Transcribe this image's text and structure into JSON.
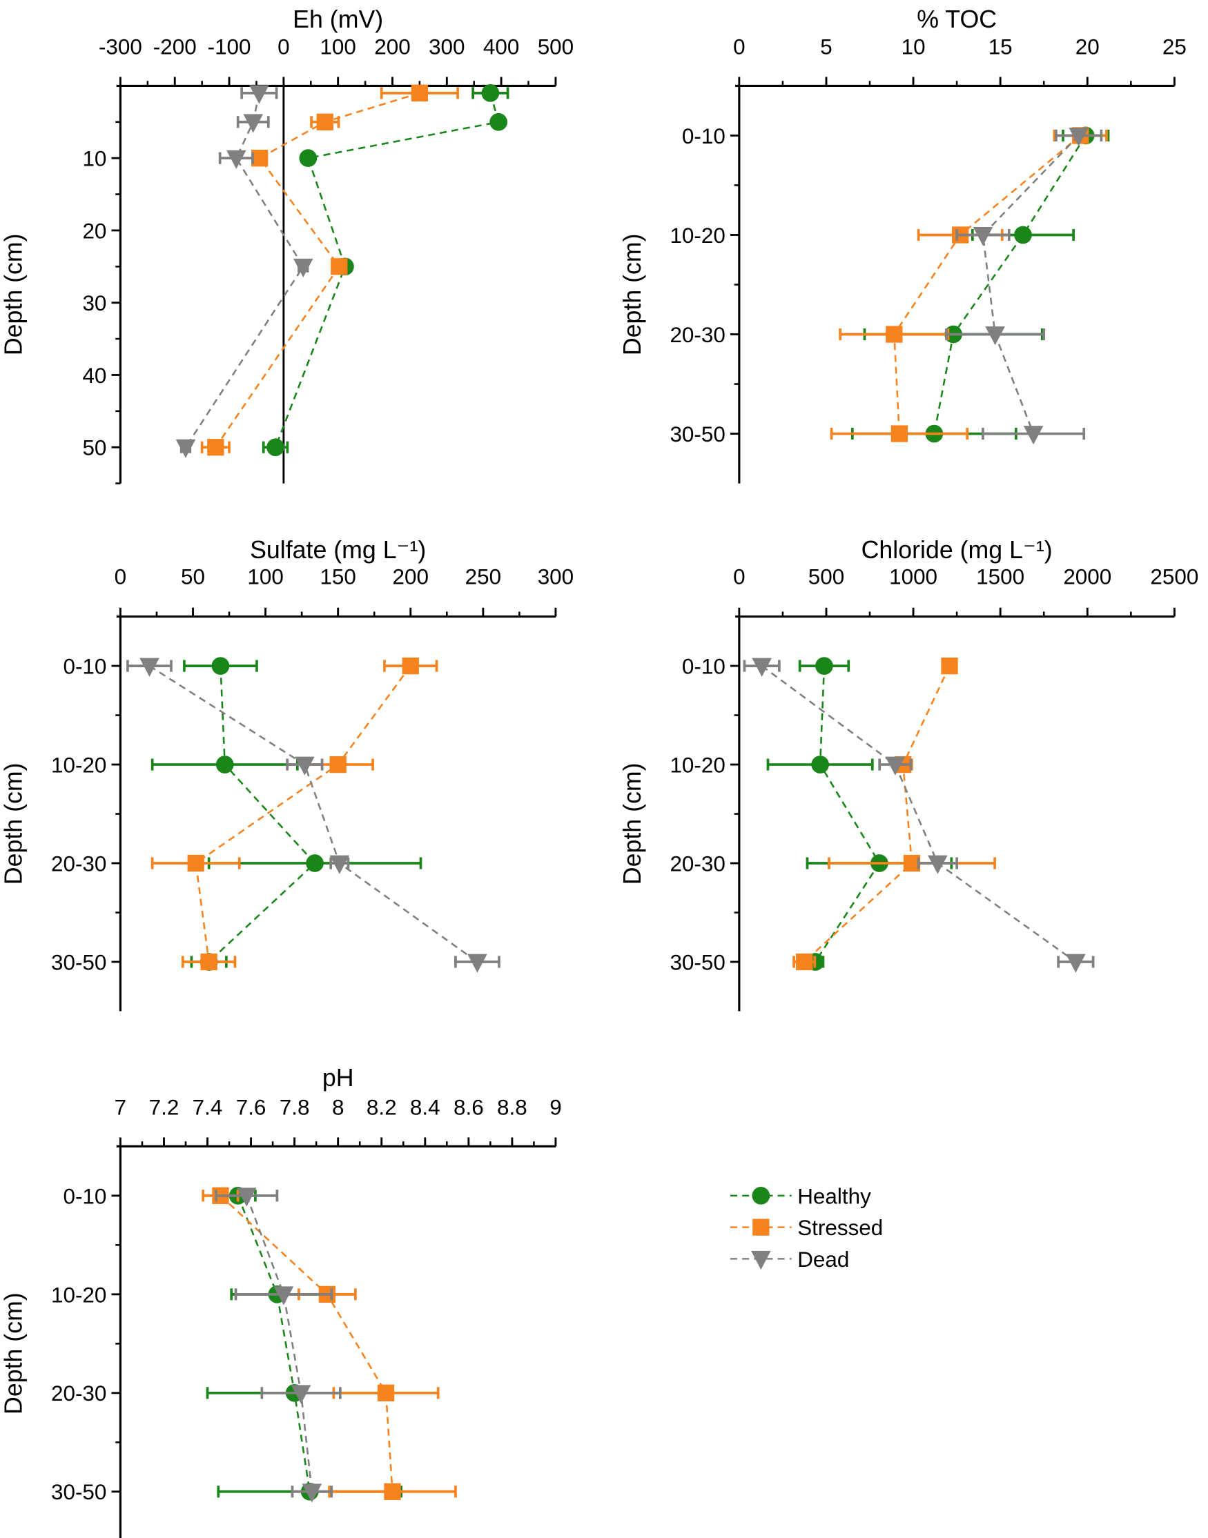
{
  "colors": {
    "Healthy": "#1a861a",
    "Stressed": "#f7831e",
    "Dead": "#808080"
  },
  "markers": {
    "Healthy": "circle",
    "Stressed": "square",
    "Dead": "triangle-down"
  },
  "legend": {
    "placement": "bottom-right",
    "items": [
      "Healthy",
      "Stressed",
      "Dead"
    ]
  },
  "chart_data": [
    {
      "type": "scatter",
      "title": "Eh (mV)",
      "ylabel": "Depth (cm)",
      "xlim": [
        -300,
        500
      ],
      "xticks": [
        -300,
        -200,
        -100,
        0,
        100,
        200,
        300,
        400,
        500
      ],
      "xminor": 50,
      "ylim": [
        0,
        55
      ],
      "yticks": [
        10,
        20,
        30,
        40,
        50
      ],
      "yminor": 5,
      "zero_line": true,
      "y": [
        1,
        5,
        10,
        25,
        50
      ],
      "series": [
        {
          "name": "Healthy",
          "x": [
            380,
            395,
            45,
            113,
            -15
          ],
          "err": [
            32,
            10,
            10,
            10,
            22
          ]
        },
        {
          "name": "Stressed",
          "x": [
            250,
            76,
            -44,
            102,
            -125
          ],
          "err": [
            70,
            25,
            10,
            10,
            25
          ]
        },
        {
          "name": "Dead",
          "x": [
            -45,
            -56,
            -87,
            36,
            -180
          ],
          "err": [
            32,
            28,
            30,
            8,
            8
          ]
        }
      ]
    },
    {
      "type": "scatter",
      "title": "% TOC",
      "ylabel": "Depth (cm)",
      "xlim": [
        0,
        25
      ],
      "xticks": [
        0,
        5,
        10,
        15,
        20,
        25
      ],
      "xminor": 2.5,
      "categories": [
        "0-10",
        "10-20",
        "20-30",
        "30-50"
      ],
      "series": [
        {
          "name": "Healthy",
          "x": [
            19.9,
            16.3,
            12.3,
            11.2
          ],
          "err": [
            1.3,
            2.9,
            5.1,
            4.7
          ]
        },
        {
          "name": "Stressed",
          "x": [
            19.6,
            12.7,
            8.9,
            9.2
          ],
          "err": [
            1.5,
            2.4,
            3.1,
            3.9
          ]
        },
        {
          "name": "Dead",
          "x": [
            19.5,
            14.0,
            14.7,
            16.9
          ],
          "err": [
            1.3,
            1.5,
            2.8,
            2.9
          ]
        }
      ]
    },
    {
      "type": "scatter",
      "title": "Sulfate (mg L⁻¹)",
      "ylabel": "Depth (cm)",
      "xlim": [
        0,
        300
      ],
      "xticks": [
        0,
        50,
        100,
        150,
        200,
        250,
        300
      ],
      "xminor": 25,
      "categories": [
        "0-10",
        "10-20",
        "20-30",
        "30-50"
      ],
      "series": [
        {
          "name": "Healthy",
          "x": [
            69,
            72,
            134,
            61
          ],
          "err": [
            25,
            50,
            73,
            12
          ]
        },
        {
          "name": "Stressed",
          "x": [
            200,
            150,
            52,
            61
          ],
          "err": [
            18,
            24,
            30,
            18
          ]
        },
        {
          "name": "Dead",
          "x": [
            20,
            127,
            151,
            246
          ],
          "err": [
            15,
            12,
            6,
            15
          ]
        }
      ]
    },
    {
      "type": "scatter",
      "title": "Chloride (mg L⁻¹)",
      "ylabel": "Depth (cm)",
      "xlim": [
        0,
        2500
      ],
      "xticks": [
        0,
        500,
        1000,
        1500,
        2000,
        2500
      ],
      "xminor": 250,
      "categories": [
        "0-10",
        "10-20",
        "20-30",
        "30-50"
      ],
      "series": [
        {
          "name": "Healthy",
          "x": [
            488,
            465,
            805,
            437
          ],
          "err": [
            140,
            300,
            414,
            45
          ]
        },
        {
          "name": "Stressed",
          "x": [
            1208,
            941,
            992,
            374
          ],
          "err": [
            30,
            50,
            476,
            60
          ]
        },
        {
          "name": "Dead",
          "x": [
            130,
            896,
            1140,
            1933
          ],
          "err": [
            100,
            90,
            110,
            100
          ]
        }
      ]
    },
    {
      "type": "scatter",
      "title": "pH",
      "ylabel": "Depth (cm)",
      "xlim": [
        7,
        9
      ],
      "xticks": [
        7,
        7.2,
        7.4,
        7.6,
        7.8,
        8,
        8.2,
        8.4,
        8.6,
        8.8,
        9
      ],
      "xminor": 0.1,
      "categories": [
        "0-10",
        "10-20",
        "20-30",
        "30-50"
      ],
      "series": [
        {
          "name": "Healthy",
          "x": [
            7.54,
            7.72,
            7.8,
            7.87
          ],
          "err": [
            0.08,
            0.21,
            0.4,
            0.42
          ]
        },
        {
          "name": "Stressed",
          "x": [
            7.46,
            7.95,
            8.22,
            8.25
          ],
          "err": [
            0.08,
            0.13,
            0.24,
            0.29
          ]
        },
        {
          "name": "Dead",
          "x": [
            7.58,
            7.75,
            7.83,
            7.88
          ],
          "err": [
            0.14,
            0.22,
            0.18,
            0.09
          ]
        }
      ]
    }
  ]
}
